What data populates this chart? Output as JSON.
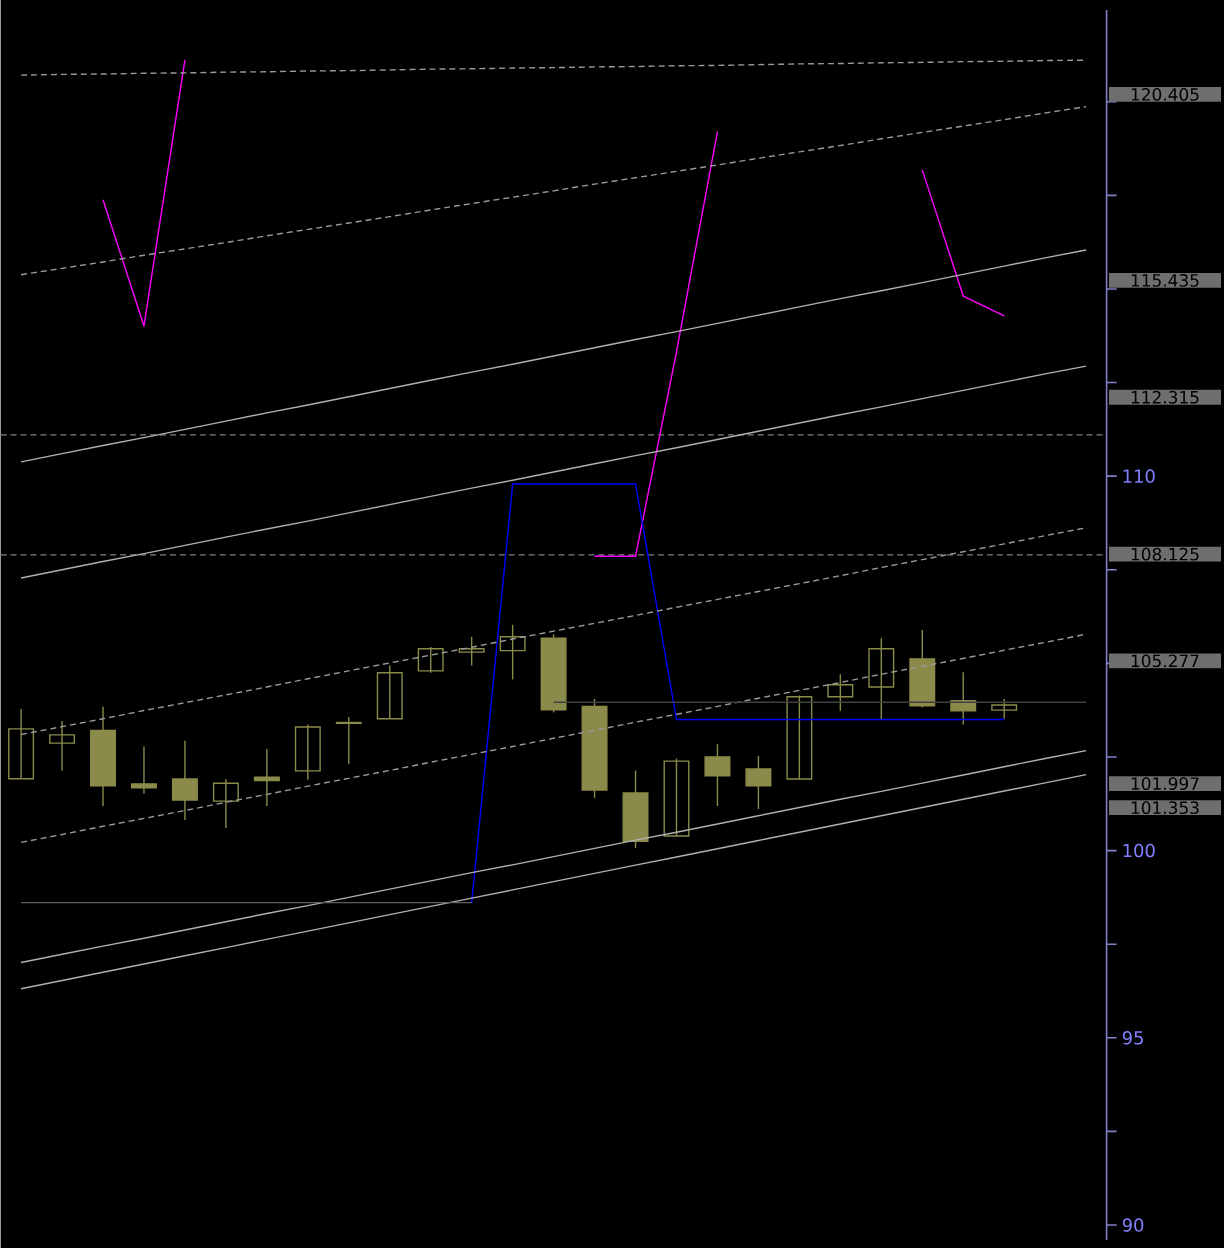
{
  "chart_data": {
    "type": "candlestick",
    "color": "#8a8a4a",
    "categories": [
      null,
      null,
      null,
      null,
      null,
      null,
      null,
      null,
      null,
      null,
      null,
      null,
      null,
      null,
      null,
      null,
      null,
      null,
      null,
      null,
      null,
      null,
      null,
      null,
      null,
      null,
      null
    ],
    "ohlc": [
      [
        101.92,
        103.78,
        101.92,
        103.25
      ],
      [
        102.87,
        103.46,
        102.13,
        103.09
      ],
      [
        103.21,
        103.84,
        101.19,
        101.73
      ],
      [
        101.78,
        102.78,
        101.52,
        101.68
      ],
      [
        101.91,
        102.93,
        100.82,
        101.35
      ],
      [
        101.32,
        101.91,
        100.6,
        101.8
      ],
      [
        101.96,
        102.71,
        101.19,
        101.87
      ],
      [
        102.13,
        103.37,
        101.89,
        103.3
      ],
      [
        103.4,
        103.57,
        102.32,
        103.42
      ],
      [
        103.52,
        104.94,
        103.52,
        104.75
      ],
      [
        104.8,
        105.44,
        104.75,
        105.39
      ],
      [
        105.3,
        105.71,
        104.94,
        105.39
      ],
      [
        105.34,
        106.03,
        104.57,
        105.71
      ],
      [
        105.67,
        105.78,
        103.69,
        103.76
      ],
      [
        103.85,
        104.05,
        101.41,
        101.62
      ],
      [
        101.54,
        102.14,
        100.07,
        100.25
      ],
      [
        100.39,
        102.46,
        100.39,
        102.39
      ],
      [
        102.5,
        102.84,
        101.19,
        102.0
      ],
      [
        102.18,
        102.53,
        101.11,
        101.73
      ],
      [
        101.91,
        104.14,
        101.91,
        104.11
      ],
      [
        104.11,
        104.71,
        103.73,
        104.43
      ],
      [
        104.37,
        105.67,
        103.5,
        105.39
      ],
      [
        105.12,
        105.89,
        103.82,
        103.87
      ],
      [
        104.0,
        104.76,
        103.37,
        103.73
      ],
      [
        103.75,
        104.05,
        103.52,
        103.89
      ],
      null,
      null
    ],
    "series": [
      {
        "type": "line",
        "color": "#ff00ff",
        "line_style": "solid",
        "values": [
          null,
          null,
          117.38,
          114.01,
          121.12,
          null,
          null,
          null,
          null,
          null,
          null,
          null,
          null,
          null,
          107.86,
          107.86,
          113.32,
          119.2,
          null,
          null,
          null,
          null,
          118.18,
          114.81,
          114.28,
          null,
          null
        ]
      },
      {
        "type": "line",
        "color": "#0000ff",
        "line_style": "solid",
        "values": [
          null,
          null,
          null,
          null,
          null,
          null,
          null,
          null,
          null,
          null,
          null,
          98.61,
          109.79,
          109.79,
          109.79,
          109.79,
          103.5,
          103.5,
          103.5,
          103.5,
          103.5,
          103.5,
          103.5,
          103.5,
          103.5,
          null,
          null
        ]
      },
      {
        "type": "line",
        "color": "#9a9a9a",
        "line_style": "dashed",
        "values": [
          120.71,
          120.73,
          120.74,
          120.76,
          120.77,
          120.79,
          120.8,
          120.82,
          120.83,
          120.85,
          120.87,
          120.88,
          120.9,
          120.91,
          120.93,
          120.94,
          120.96,
          120.97,
          120.99,
          121.01,
          121.02,
          121.04,
          121.05,
          121.07,
          121.08,
          121.1,
          121.11
        ]
      },
      {
        "type": "line",
        "color": "#9a9a9a",
        "line_style": "dashed",
        "values": [
          115.38,
          115.55,
          115.72,
          115.9,
          116.07,
          116.24,
          116.42,
          116.59,
          116.76,
          116.93,
          117.11,
          117.28,
          117.45,
          117.62,
          117.8,
          117.97,
          118.14,
          118.31,
          118.49,
          118.66,
          118.83,
          119.01,
          119.18,
          119.35,
          119.52,
          119.7,
          119.87
        ]
      },
      {
        "type": "line",
        "color": "#b0b0b0",
        "line_style": "solid",
        "values": [
          110.38,
          110.6,
          110.82,
          111.03,
          111.25,
          111.47,
          111.69,
          111.9,
          112.12,
          112.34,
          112.56,
          112.78,
          112.99,
          113.21,
          113.43,
          113.65,
          113.86,
          114.08,
          114.3,
          114.52,
          114.74,
          114.95,
          115.17,
          115.39,
          115.61,
          115.83,
          116.04
        ]
      },
      {
        "type": "line",
        "color": "#b0b0b0",
        "line_style": "solid",
        "values": [
          107.28,
          107.5,
          107.72,
          107.93,
          108.15,
          108.37,
          108.59,
          108.8,
          109.02,
          109.24,
          109.46,
          109.68,
          109.89,
          110.11,
          110.33,
          110.55,
          110.76,
          110.98,
          111.2,
          111.42,
          111.64,
          111.85,
          112.07,
          112.29,
          112.51,
          112.73,
          112.94
        ]
      },
      {
        "type": "line",
        "color": "#9a9a9a",
        "line_style": "dashed",
        "values": [
          103.1,
          103.31,
          103.52,
          103.74,
          103.95,
          104.16,
          104.37,
          104.59,
          104.8,
          105.01,
          105.22,
          105.43,
          105.65,
          105.86,
          106.07,
          106.28,
          106.5,
          106.71,
          106.92,
          107.13,
          107.34,
          107.56,
          107.77,
          107.98,
          108.19,
          108.41,
          108.62
        ]
      },
      {
        "type": "line",
        "color": "#9a9a9a",
        "line_style": "dashed",
        "values": [
          100.22,
          100.43,
          100.65,
          100.86,
          101.07,
          101.29,
          101.5,
          101.72,
          101.93,
          102.14,
          102.36,
          102.57,
          102.78,
          103.0,
          103.21,
          103.43,
          103.64,
          103.85,
          104.07,
          104.28,
          104.49,
          104.71,
          104.92,
          105.13,
          105.35,
          105.56,
          105.78
        ]
      },
      {
        "type": "line",
        "color": "#b0b0b0",
        "line_style": "solid",
        "values": [
          97.01,
          97.23,
          97.45,
          97.66,
          97.88,
          98.1,
          98.32,
          98.53,
          98.75,
          98.97,
          99.19,
          99.41,
          99.62,
          99.84,
          100.06,
          100.28,
          100.49,
          100.71,
          100.93,
          101.15,
          101.37,
          101.58,
          101.8,
          102.02,
          102.24,
          102.46,
          102.67
        ]
      },
      {
        "type": "line",
        "color": "#b0b0b0",
        "line_style": "solid",
        "values": [
          96.31,
          96.53,
          96.75,
          96.97,
          97.19,
          97.41,
          97.63,
          97.85,
          98.07,
          98.29,
          98.51,
          98.73,
          98.95,
          99.17,
          99.39,
          99.61,
          99.83,
          100.05,
          100.27,
          100.49,
          100.71,
          100.93,
          101.15,
          101.37,
          101.59,
          101.81,
          102.03
        ]
      },
      {
        "type": "line",
        "color": "#606060",
        "line_style": "solid",
        "values": [
          98.61,
          98.61,
          98.61,
          98.61,
          98.61,
          98.61,
          98.61,
          98.61,
          98.61,
          98.61,
          98.61,
          98.61,
          null,
          null,
          null,
          null,
          null,
          null,
          null,
          null,
          null,
          null,
          null,
          null,
          null,
          null,
          null
        ]
      },
      {
        "type": "line",
        "color": "#404040",
        "line_style": "solid",
        "values": [
          null,
          null,
          null,
          null,
          null,
          null,
          null,
          null,
          null,
          null,
          null,
          null,
          null,
          103.96,
          103.96,
          103.96,
          103.96,
          103.96,
          103.96,
          103.96,
          103.96,
          103.96,
          103.96,
          103.96,
          103.96,
          103.96,
          103.96
        ]
      }
    ],
    "ref_lines": [
      {
        "axis": "y",
        "value": 111.1,
        "color": "#808080",
        "line_style": "dashed"
      },
      {
        "axis": "y",
        "value": 107.9,
        "color": "#808080",
        "line_style": "dashed"
      }
    ],
    "ylim": [
      89.6,
      122.45
    ],
    "yticks": [
      90,
      {
        "value": 92.5,
        "label": null
      },
      95,
      {
        "value": 97.5,
        "label": null
      },
      100,
      {
        "value": 102.5,
        "label": null
      },
      {
        "value": 105,
        "label": null
      },
      {
        "value": 107.5,
        "label": null
      },
      110,
      {
        "value": 112.5,
        "label": null
      },
      {
        "value": 115,
        "label": null
      },
      {
        "value": 117.5,
        "label": null
      },
      {
        "value": 120,
        "label": null
      }
    ],
    "annotations": [
      "120.405",
      "115.435",
      "112.315",
      "108.125",
      "105.277",
      "101.997",
      "101.353"
    ]
  }
}
